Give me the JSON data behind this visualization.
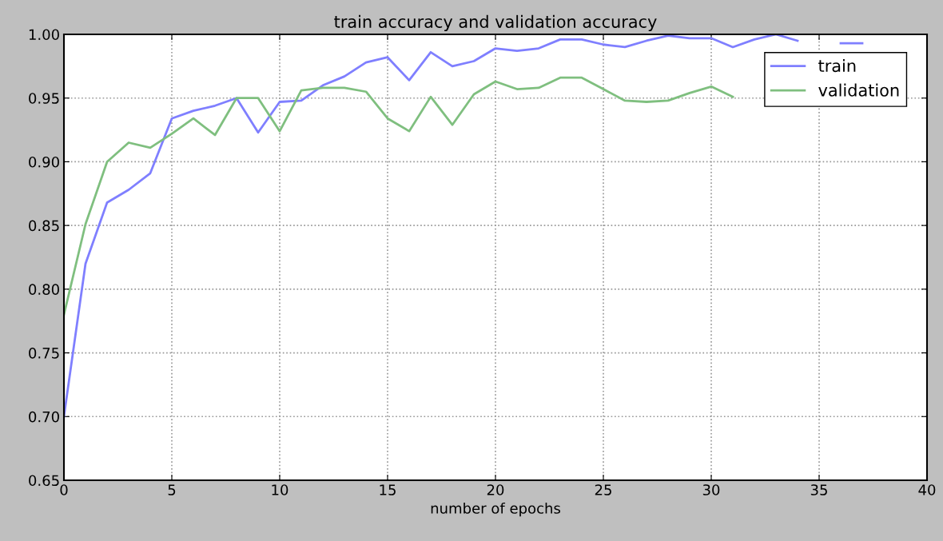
{
  "chart_data": {
    "type": "line",
    "title": "train accuracy and validation accuracy",
    "xlabel": "number of epochs",
    "x": [
      0,
      1,
      2,
      3,
      4,
      5,
      6,
      7,
      8,
      9,
      10,
      11,
      12,
      13,
      14,
      15,
      16,
      17,
      18,
      19,
      20,
      21,
      22,
      23,
      24,
      25,
      26,
      27,
      28,
      29,
      30,
      31,
      32,
      33,
      34,
      35,
      36,
      37
    ],
    "series": [
      {
        "name": "train",
        "color": "#7f7fff",
        "values": [
          0.7,
          0.82,
          0.868,
          0.878,
          0.891,
          0.934,
          0.94,
          0.944,
          0.95,
          0.923,
          0.947,
          0.948,
          0.96,
          0.967,
          0.978,
          0.982,
          0.964,
          0.986,
          0.975,
          0.979,
          0.989,
          0.987,
          0.989,
          0.996,
          0.996,
          0.992,
          0.99,
          0.995,
          0.999,
          0.997,
          0.997,
          0.99,
          0.996,
          1.0,
          0.995,
          null,
          0.993,
          0.993
        ]
      },
      {
        "name": "validation",
        "color": "#7fbf7f",
        "values": [
          0.78,
          0.851,
          0.9,
          0.915,
          0.911,
          0.922,
          0.934,
          0.921,
          0.95,
          0.95,
          0.924,
          0.956,
          0.958,
          0.958,
          0.955,
          0.934,
          0.924,
          0.951,
          0.929,
          0.953,
          0.963,
          0.957,
          0.958,
          0.966,
          0.966,
          0.957,
          0.948,
          0.947,
          0.948,
          0.954,
          0.959,
          0.951,
          null,
          null,
          null,
          null,
          null,
          null
        ]
      }
    ],
    "xlim": [
      0,
      40
    ],
    "xticks": [
      0,
      5,
      10,
      15,
      20,
      25,
      30,
      35,
      40
    ],
    "ylim": [
      0.65,
      1.0
    ],
    "yticks": [
      {
        "value": 0.65,
        "label": "0.65"
      },
      {
        "value": 0.7,
        "label": "0.70"
      },
      {
        "value": 0.75,
        "label": "0.75"
      },
      {
        "value": 0.8,
        "label": "0.80"
      },
      {
        "value": 0.85,
        "label": "0.85"
      },
      {
        "value": 0.9,
        "label": "0.90"
      },
      {
        "value": 0.95,
        "label": "0.95"
      },
      {
        "value": 1.0,
        "label": "1.00"
      }
    ],
    "grid": true,
    "legend": "top right",
    "line_style": "solid",
    "marker": "none"
  }
}
